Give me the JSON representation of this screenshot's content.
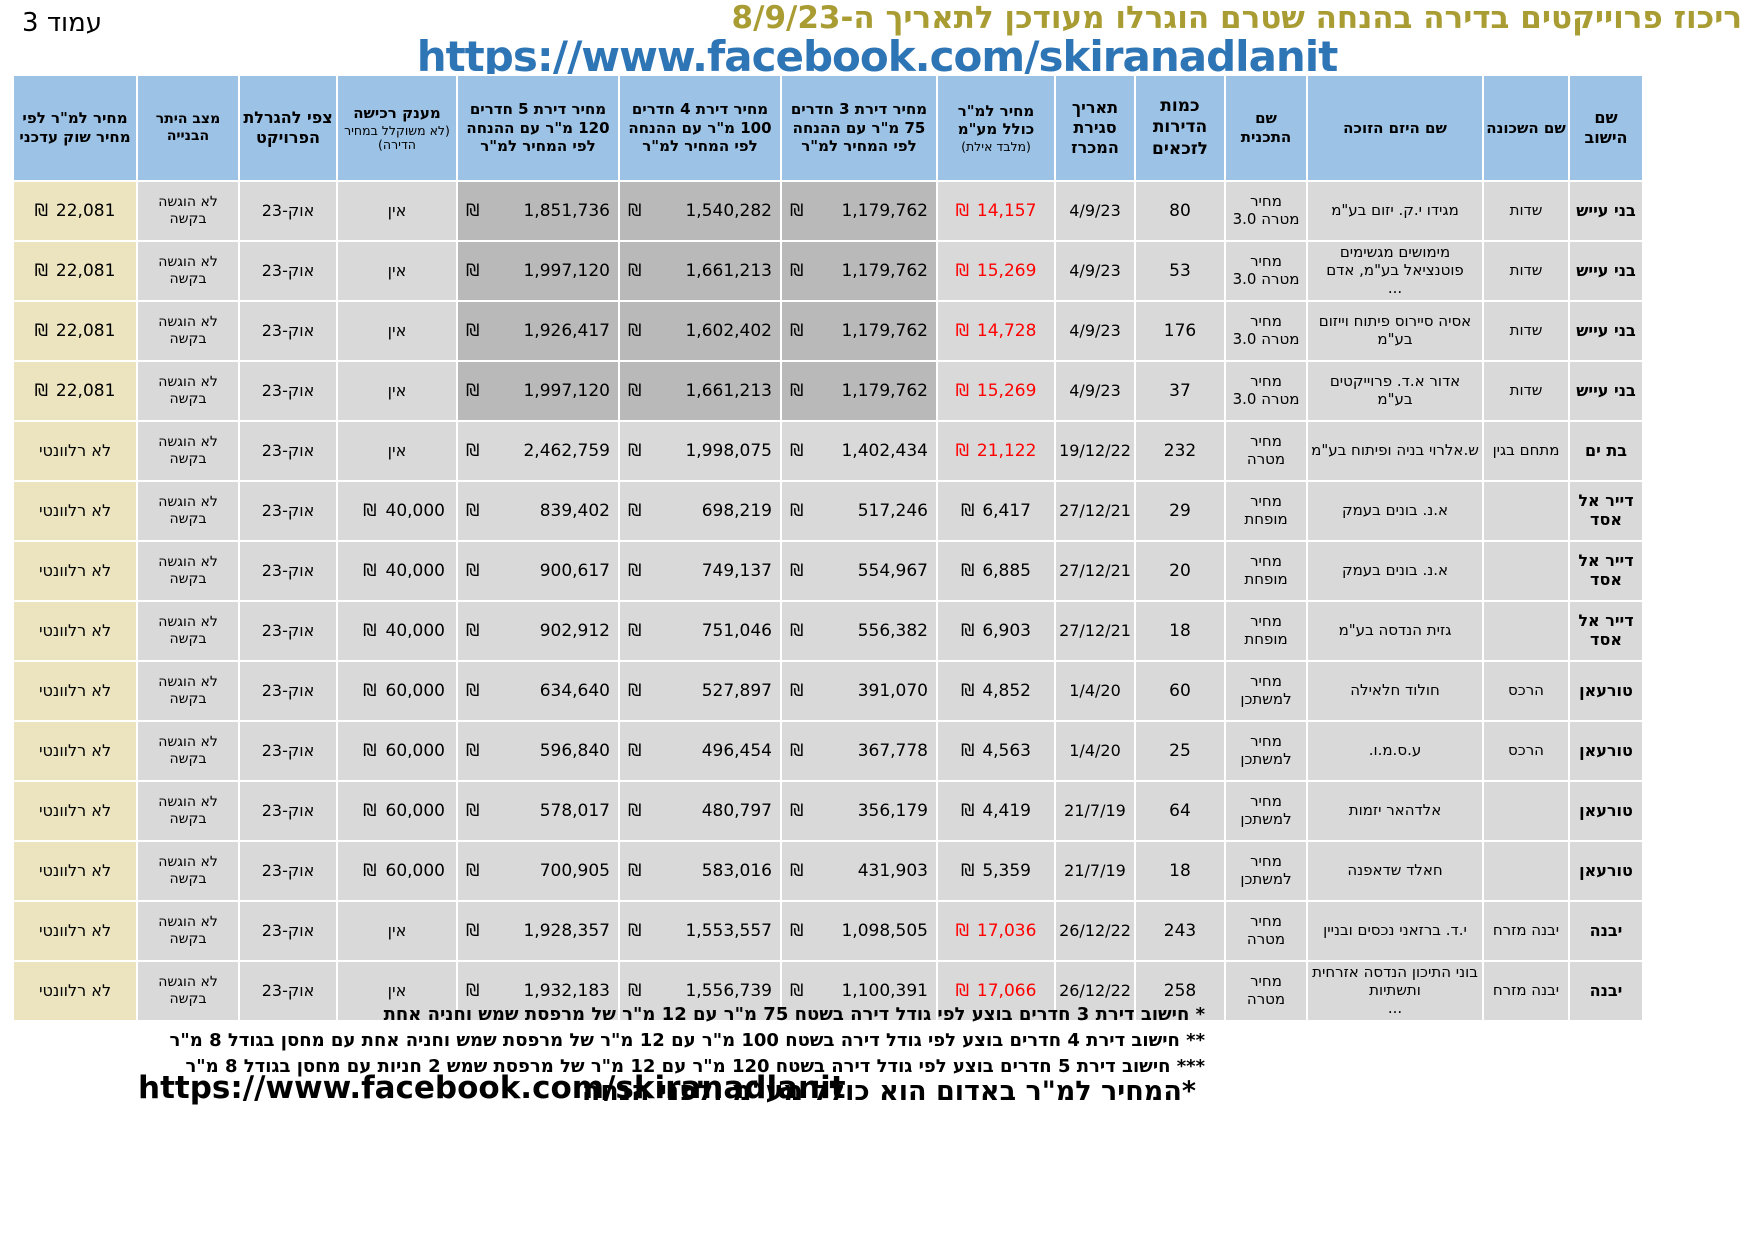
{
  "currency_symbol": "₪",
  "page": {
    "page_label": "עמוד",
    "page_number": "3",
    "title": "ריכוז פרוייקטים בדירה בהנחה שטרם הוגרלו מעודכן לתאריך ה-8/9/23",
    "link": "https://www.facebook.com/skiranadlanit"
  },
  "table": {
    "headers": [
      {
        "key": "city",
        "main": "שם הישוב"
      },
      {
        "key": "hood",
        "main": "שם השכונה"
      },
      {
        "key": "dev",
        "main": "שם היזם הזוכה"
      },
      {
        "key": "plan",
        "main": "שם התכנית"
      },
      {
        "key": "qty",
        "main": "כמות הדירות לזכאים"
      },
      {
        "key": "date",
        "main": "תאריך סגירת המכרז"
      },
      {
        "key": "sqm",
        "main": "מחיר למ\"ר כולל מע\"מ",
        "sub": "(מלבד אילת)"
      },
      {
        "key": "r3",
        "main": "מחיר דירת 3 חדרים 75 מ\"ר עם ההנחה לפי המחיר למ\"ר"
      },
      {
        "key": "r4",
        "main": "מחיר דירת 4 חדרים 100 מ\"ר עם ההנחה לפי המחיר למ\"ר"
      },
      {
        "key": "r5",
        "main": "מחיר דירת 5 חדרים 120 מ\"ר עם ההנחה לפי המחיר למ\"ר"
      },
      {
        "key": "grant",
        "main": "מענק רכישה",
        "sub": "(לא משוקלל במחיר הדירה)"
      },
      {
        "key": "lottery",
        "main": "צפי להגרלת הפרויקט"
      },
      {
        "key": "permit",
        "main": "מצב היתר הבנייה"
      },
      {
        "key": "market",
        "main": "מחיר למ\"ר לפי מחיר שוק עדכני"
      }
    ],
    "rows": [
      {
        "city": "בני עייש",
        "hood": "שדות",
        "dev": "מגידו י.ק. יזום בע\"מ",
        "plan": "מחיר מטרה 3.0",
        "qty": "80",
        "date": "4/9/23",
        "sqm": "14,157",
        "red": true,
        "r3": "1,179,762",
        "r4": "1,540,282",
        "r5": "1,851,736",
        "grant": "אין",
        "lottery": "אוק-23",
        "permit": "לא הוגשה בקשה",
        "market": "22,081"
      },
      {
        "city": "בני עייש",
        "hood": "שדות",
        "dev": "מימושים מגשימים פוטנציאל בע\"מ, אדם\n...",
        "plan": "מחיר מטרה 3.0",
        "qty": "53",
        "date": "4/9/23",
        "sqm": "15,269",
        "red": true,
        "r3": "1,179,762",
        "r4": "1,661,213",
        "r5": "1,997,120",
        "grant": "אין",
        "lottery": "אוק-23",
        "permit": "לא הוגשה בקשה",
        "market": "22,081"
      },
      {
        "city": "בני עייש",
        "hood": "שדות",
        "dev": "אסיה סיירוס פיתוח וייזום בע\"מ",
        "plan": "מחיר מטרה 3.0",
        "qty": "176",
        "date": "4/9/23",
        "sqm": "14,728",
        "red": true,
        "r3": "1,179,762",
        "r4": "1,602,402",
        "r5": "1,926,417",
        "grant": "אין",
        "lottery": "אוק-23",
        "permit": "לא הוגשה בקשה",
        "market": "22,081"
      },
      {
        "city": "בני עייש",
        "hood": "שדות",
        "dev": "אדור א.ד. פרוייקטים בע\"מ",
        "plan": "מחיר מטרה 3.0",
        "qty": "37",
        "date": "4/9/23",
        "sqm": "15,269",
        "red": true,
        "r3": "1,179,762",
        "r4": "1,661,213",
        "r5": "1,997,120",
        "grant": "אין",
        "lottery": "אוק-23",
        "permit": "לא הוגשה בקשה",
        "market": "22,081"
      },
      {
        "city": "בת ים",
        "hood": "מתחם בגין",
        "dev": "ש.אלרוי בניה ופיתוח בע\"מ",
        "plan": "מחיר מטרה",
        "qty": "232",
        "date": "19/12/22",
        "sqm": "21,122",
        "red": true,
        "r3": "1,402,434",
        "r4": "1,998,075",
        "r5": "2,462,759",
        "grant": "אין",
        "lottery": "אוק-23",
        "permit": "לא הוגשה בקשה",
        "market": "לא רלוונטי"
      },
      {
        "city": "דייר אל אסד",
        "hood": "",
        "dev": "א.נ. בונים בעמק",
        "plan": "מחיר מופחת",
        "qty": "29",
        "date": "27/12/21",
        "sqm": "6,417",
        "red": false,
        "r3": "517,246",
        "r4": "698,219",
        "r5": "839,402",
        "grant": "40,000",
        "lottery": "אוק-23",
        "permit": "לא הוגשה בקשה",
        "market": "לא רלוונטי"
      },
      {
        "city": "דייר אל אסד",
        "hood": "",
        "dev": "א.נ. בונים בעמק",
        "plan": "מחיר מופחת",
        "qty": "20",
        "date": "27/12/21",
        "sqm": "6,885",
        "red": false,
        "r3": "554,967",
        "r4": "749,137",
        "r5": "900,617",
        "grant": "40,000",
        "lottery": "אוק-23",
        "permit": "לא הוגשה בקשה",
        "market": "לא רלוונטי"
      },
      {
        "city": "דייר אל אסד",
        "hood": "",
        "dev": "גזית הנדסה בע\"מ",
        "plan": "מחיר מופחת",
        "qty": "18",
        "date": "27/12/21",
        "sqm": "6,903",
        "red": false,
        "r3": "556,382",
        "r4": "751,046",
        "r5": "902,912",
        "grant": "40,000",
        "lottery": "אוק-23",
        "permit": "לא הוגשה בקשה",
        "market": "לא רלוונטי"
      },
      {
        "city": "טורעאן",
        "hood": "הרכס",
        "dev": "חולוד חלאילה",
        "plan": "מחיר למשתכן",
        "qty": "60",
        "date": "1/4/20",
        "sqm": "4,852",
        "red": false,
        "r3": "391,070",
        "r4": "527,897",
        "r5": "634,640",
        "grant": "60,000",
        "lottery": "אוק-23",
        "permit": "לא הוגשה בקשה",
        "market": "לא רלוונטי"
      },
      {
        "city": "טורעאן",
        "hood": "הרכס",
        "dev": "ע.ס.מ.ו.",
        "plan": "מחיר למשתכן",
        "qty": "25",
        "date": "1/4/20",
        "sqm": "4,563",
        "red": false,
        "r3": "367,778",
        "r4": "496,454",
        "r5": "596,840",
        "grant": "60,000",
        "lottery": "אוק-23",
        "permit": "לא הוגשה בקשה",
        "market": "לא רלוונטי"
      },
      {
        "city": "טורעאן",
        "hood": "",
        "dev": "אלדהאר יזמות",
        "plan": "מחיר למשתכן",
        "qty": "64",
        "date": "21/7/19",
        "sqm": "4,419",
        "red": false,
        "r3": "356,179",
        "r4": "480,797",
        "r5": "578,017",
        "grant": "60,000",
        "lottery": "אוק-23",
        "permit": "לא הוגשה בקשה",
        "market": "לא רלוונטי"
      },
      {
        "city": "טורעאן",
        "hood": "",
        "dev": "חאלד שדאפנה",
        "plan": "מחיר למשתכן",
        "qty": "18",
        "date": "21/7/19",
        "sqm": "5,359",
        "red": false,
        "r3": "431,903",
        "r4": "583,016",
        "r5": "700,905",
        "grant": "60,000",
        "lottery": "אוק-23",
        "permit": "לא הוגשה בקשה",
        "market": "לא רלוונטי"
      },
      {
        "city": "יבנה",
        "hood": "יבנה מזרח",
        "dev": "י.ד. ברזאני נכסים ובניין",
        "plan": "מחיר מטרה",
        "qty": "243",
        "date": "26/12/22",
        "sqm": "17,036",
        "red": true,
        "r3": "1,098,505",
        "r4": "1,553,557",
        "r5": "1,928,357",
        "grant": "אין",
        "lottery": "אוק-23",
        "permit": "לא הוגשה בקשה",
        "market": "לא רלוונטי"
      },
      {
        "city": "יבנה",
        "hood": "יבנה מזרח",
        "dev": "בוני התיכון הנדסה אזרחית ותשתיות\n...",
        "plan": "מחיר מטרה",
        "qty": "258",
        "date": "26/12/22",
        "sqm": "17,066",
        "red": true,
        "r3": "1,100,391",
        "r4": "1,556,739",
        "r5": "1,932,183",
        "grant": "אין",
        "lottery": "אוק-23",
        "permit": "לא הוגשה בקשה",
        "market": "לא רלוונטי"
      }
    ]
  },
  "footnotes": [
    "* חישוב דירת 3 חדרים בוצע לפי גודל דירה בשטח 75 מ\"ר עם 12 מ\"ר של מרפסת שמש וחניה אחת",
    "** חישוב דירת 4 חדרים בוצע לפי גודל דירה בשטח 100 מ\"ר עם 12 מ\"ר של מרפסת שמש וחניה אחת עם מחסן בגודל 8 מ\"ר",
    "*** חישוב דירת 5 חדרים בוצע לפי גודל דירה בשטח 120 מ\"ר עם 12 מ\"ר של מרפסת שמש 2 חניות עם מחסן בגודל 8 מ\"ר"
  ],
  "footer": {
    "note": "*המחיר למ\"ר באדום הוא כולל מע\"מ ולפני הנחה",
    "link": "https://www.facebook.com/skiranadlanit"
  }
}
